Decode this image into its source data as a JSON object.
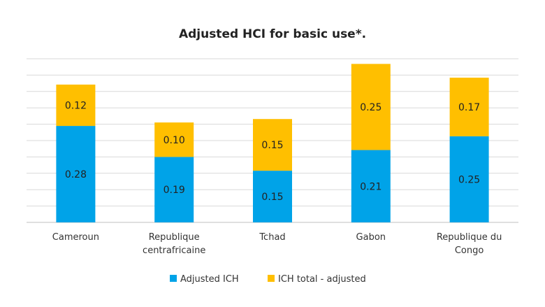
{
  "chart_data": {
    "type": "bar",
    "stacked": true,
    "title": "Adjusted HCI for basic use*.",
    "categories": [
      [
        "Cameroun"
      ],
      [
        "Republique",
        "centrafricaine"
      ],
      [
        "Tchad"
      ],
      [
        "Gabon"
      ],
      [
        "Republique du",
        "Congo"
      ]
    ],
    "series": [
      {
        "name": "Adjusted ICH",
        "color": "#00A3E8",
        "values": [
          0.28,
          0.19,
          0.15,
          0.21,
          0.25
        ],
        "labels": [
          "0.28",
          "0.19",
          "0.15",
          "0.21",
          "0.25"
        ]
      },
      {
        "name": "ICH total - adjusted",
        "color": "#FFBF00",
        "values": [
          0.12,
          0.1,
          0.15,
          0.25,
          0.17
        ],
        "labels": [
          "0.12",
          "0.10",
          "0.15",
          "0.25",
          "0.17"
        ]
      }
    ],
    "ylim": [
      0,
      0.475
    ],
    "grid": true,
    "gridlines": 10,
    "gridline_color": "#d9d9d9",
    "legend_position": "bottom"
  }
}
